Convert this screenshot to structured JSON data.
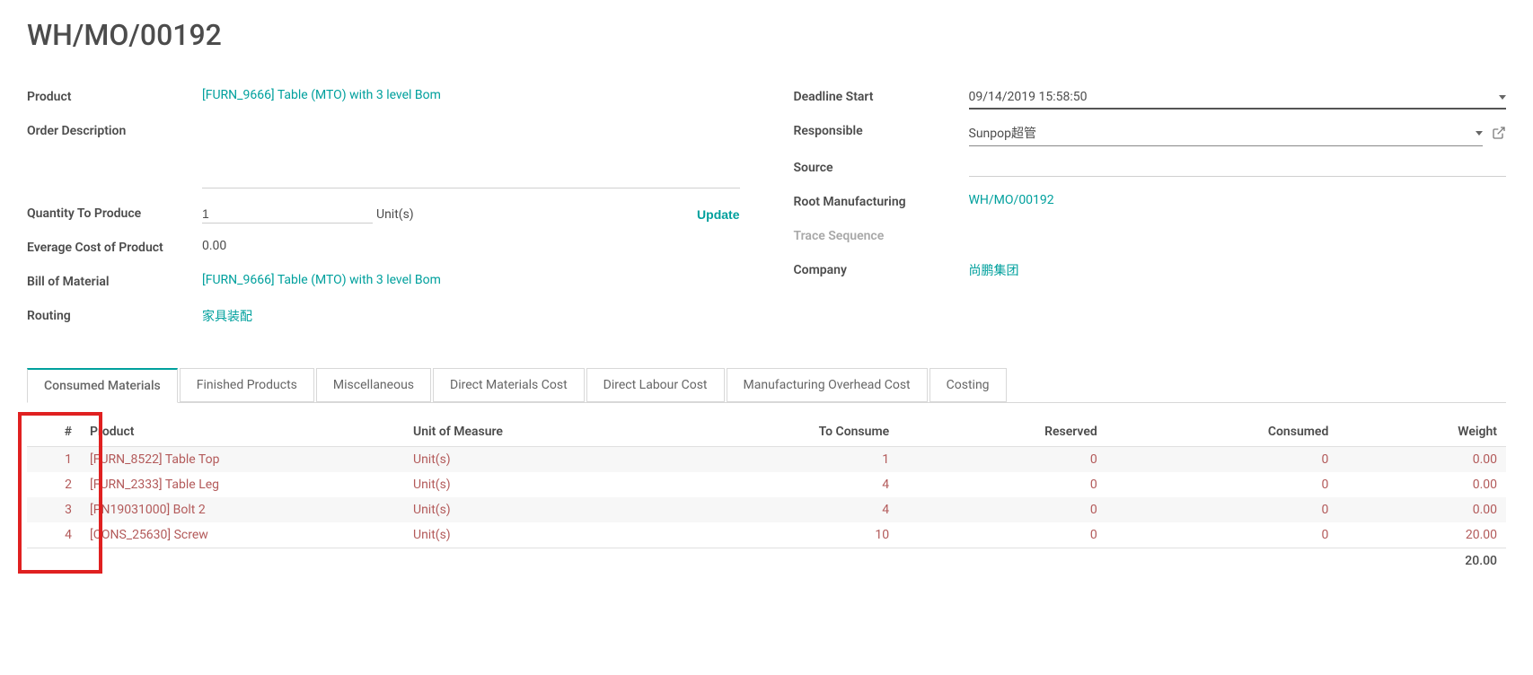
{
  "page_title": "WH/MO/00192",
  "left_fields": {
    "product": {
      "label": "Product",
      "value": "[FURN_9666] Table (MTO) with 3 level Bom"
    },
    "order_desc": {
      "label": "Order Description"
    },
    "qty_to_produce": {
      "label": "Quantity To Produce",
      "value": "1",
      "unit": "Unit(s)",
      "update": "Update"
    },
    "avg_cost": {
      "label": "Everage Cost of Product",
      "value": "0.00"
    },
    "bom": {
      "label": "Bill of Material",
      "value": "[FURN_9666] Table (MTO) with 3 level Bom"
    },
    "routing": {
      "label": "Routing",
      "value": "家具装配"
    }
  },
  "right_fields": {
    "deadline": {
      "label": "Deadline Start",
      "value": "09/14/2019 15:58:50"
    },
    "responsible": {
      "label": "Responsible",
      "value": "Sunpop超管"
    },
    "source": {
      "label": "Source"
    },
    "root_mfg": {
      "label": "Root Manufacturing",
      "value": "WH/MO/00192"
    },
    "trace_seq": {
      "label": "Trace Sequence"
    },
    "company": {
      "label": "Company",
      "value": "尚鹏集团"
    }
  },
  "tabs": [
    "Consumed Materials",
    "Finished Products",
    "Miscellaneous",
    "Direct Materials Cost",
    "Direct Labour Cost",
    "Manufacturing Overhead Cost",
    "Costing"
  ],
  "table": {
    "headers": {
      "idx": "#",
      "product": "Product",
      "uom": "Unit of Measure",
      "to_consume": "To Consume",
      "reserved": "Reserved",
      "consumed": "Consumed",
      "weight": "Weight"
    },
    "rows": [
      {
        "idx": "1",
        "product": "[FURN_8522] Table Top",
        "uom": "Unit(s)",
        "to_consume": "1",
        "reserved": "0",
        "consumed": "0",
        "weight": "0.00"
      },
      {
        "idx": "2",
        "product": "[FURN_2333] Table Leg",
        "uom": "Unit(s)",
        "to_consume": "4",
        "reserved": "0",
        "consumed": "0",
        "weight": "0.00"
      },
      {
        "idx": "3",
        "product": "[PN19031000] Bolt 2",
        "uom": "Unit(s)",
        "to_consume": "4",
        "reserved": "0",
        "consumed": "0",
        "weight": "0.00"
      },
      {
        "idx": "4",
        "product": "[CONS_25630] Screw",
        "uom": "Unit(s)",
        "to_consume": "10",
        "reserved": "0",
        "consumed": "0",
        "weight": "20.00"
      }
    ],
    "total_weight": "20.00"
  },
  "colors": {
    "accent": "#00a09d",
    "row_text": "#b35a5a",
    "highlight_border": "#e02020"
  }
}
